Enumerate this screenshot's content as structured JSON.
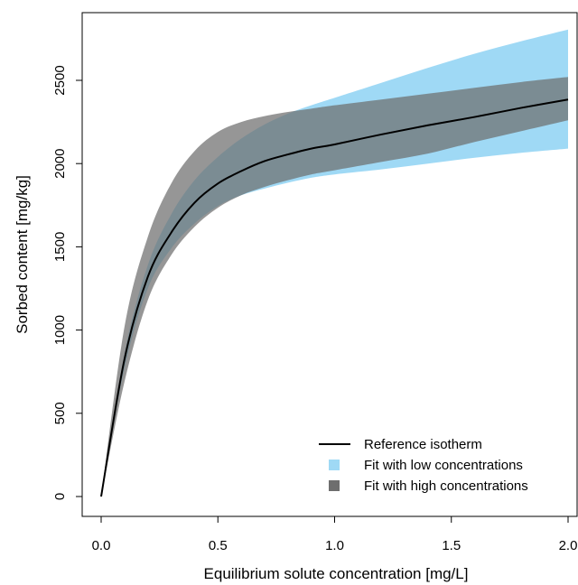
{
  "chart_data": {
    "type": "area",
    "title": "",
    "xlabel": "Equilibrium solute concentration [mg/L]",
    "ylabel": "Sorbed content [mg/kg]",
    "xlim": [
      0,
      2.0
    ],
    "ylim": [
      0,
      2700
    ],
    "x_ticks": [
      0,
      0.5,
      1.0,
      1.5,
      2.0
    ],
    "x_tick_labels": [
      "0.0",
      "0.5",
      "1.0",
      "1.5",
      "2.0"
    ],
    "y_ticks": [
      0,
      500,
      1000,
      1500,
      2000,
      2500
    ],
    "y_tick_labels": [
      "0",
      "500",
      "1000",
      "1500",
      "2000",
      "2500"
    ],
    "grid": false,
    "legend_position": "bottom-right",
    "x": [
      0,
      0.1,
      0.2,
      0.3,
      0.4,
      0.5,
      0.6,
      0.7,
      0.8,
      0.9,
      1.0,
      1.2,
      1.4,
      1.6,
      1.8,
      2.0
    ],
    "series": [
      {
        "name": "Reference isotherm",
        "kind": "line",
        "color": "#000000",
        "y": [
          0,
          825,
          1320,
          1585,
          1765,
          1880,
          1955,
          2015,
          2055,
          2090,
          2115,
          2175,
          2230,
          2280,
          2335,
          2385
        ]
      },
      {
        "name": "Fit with low concentrations",
        "kind": "band",
        "color": "#9fd9f5",
        "lower": [
          0,
          770,
          1250,
          1490,
          1640,
          1745,
          1810,
          1850,
          1885,
          1915,
          1935,
          1965,
          2000,
          2035,
          2065,
          2090
        ],
        "upper": [
          0,
          860,
          1390,
          1695,
          1900,
          2040,
          2150,
          2235,
          2300,
          2350,
          2395,
          2485,
          2575,
          2660,
          2735,
          2805
        ]
      },
      {
        "name": "Fit with high concentrations",
        "kind": "band",
        "color": "#6e6e6e",
        "lower": [
          0,
          690,
          1180,
          1450,
          1620,
          1735,
          1810,
          1860,
          1900,
          1935,
          1960,
          2010,
          2060,
          2130,
          2195,
          2260
        ],
        "upper": [
          0,
          1020,
          1560,
          1880,
          2075,
          2190,
          2250,
          2285,
          2310,
          2330,
          2350,
          2385,
          2420,
          2455,
          2490,
          2520
        ]
      }
    ]
  }
}
